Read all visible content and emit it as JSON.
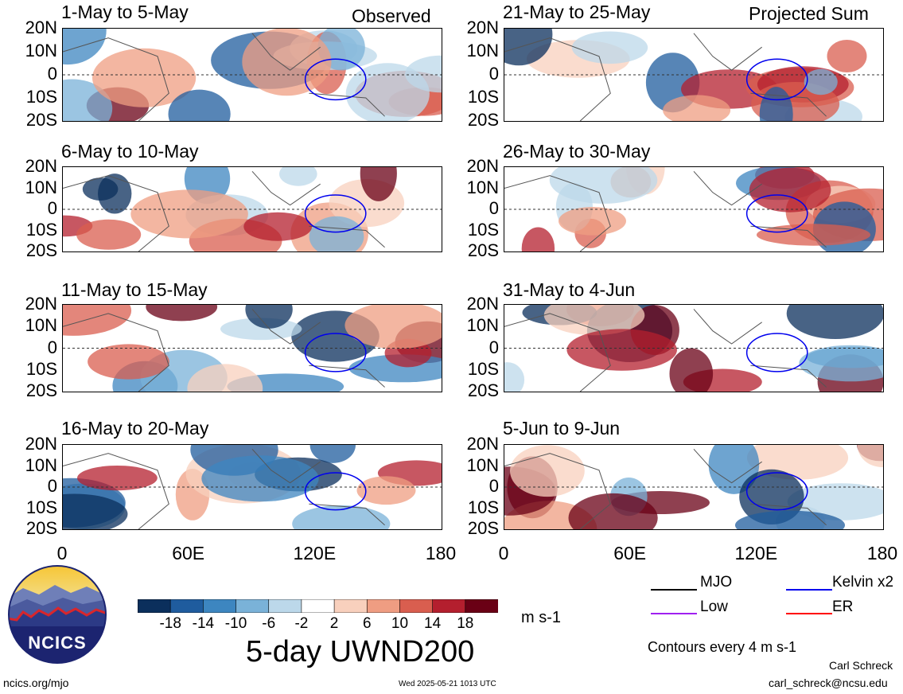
{
  "figure": {
    "title": "5-day UWND200",
    "units": "m s-1",
    "contour_note": "Contours every 4 m s-1",
    "author": "Carl Schreck",
    "email": "carl_schreck@ncsu.edu",
    "url": "ncics.org/mjo",
    "timestamp": "Wed 2025-05-21 1013 UTC",
    "logo_text": "NCICS",
    "observed_tag": "Observed",
    "projected_tag": "Projected Sum"
  },
  "chart_data": {
    "type": "heatmap",
    "variable": "5-day UWND200",
    "units": "m s-1",
    "x_ticks": [
      "0",
      "60E",
      "120E",
      "180"
    ],
    "y_ticks": [
      "20N",
      "10N",
      "0",
      "10S",
      "20S"
    ],
    "xlim": [
      0,
      180
    ],
    "ylim": [
      -20,
      20
    ],
    "color_levels": [
      "-18",
      "-14",
      "-10",
      "-6",
      "-2",
      "2",
      "6",
      "10",
      "14",
      "18"
    ],
    "color_scale": [
      "#0b2f5c",
      "#1f5c9e",
      "#3d86c0",
      "#7ab2d8",
      "#bcd8ea",
      "#ffffff",
      "#f8d0bd",
      "#ef9d82",
      "#d95e4f",
      "#b41f2e",
      "#6a0015"
    ],
    "panels_observed": [
      {
        "title": "1-May to 5-May"
      },
      {
        "title": "6-May to 10-May"
      },
      {
        "title": "11-May to 15-May"
      },
      {
        "title": "16-May to 20-May"
      }
    ],
    "panels_projected": [
      {
        "title": "21-May to 25-May"
      },
      {
        "title": "26-May to 30-May"
      },
      {
        "title": "31-May to 4-Jun"
      },
      {
        "title": "5-Jun to 9-Jun"
      }
    ],
    "legend": [
      {
        "label": "MJO",
        "color": "#000000"
      },
      {
        "label": "Kelvin x2",
        "color": "#0000ee"
      },
      {
        "label": "Low",
        "color": "#a020f0"
      },
      {
        "label": "ER",
        "color": "#ff0000"
      }
    ]
  }
}
